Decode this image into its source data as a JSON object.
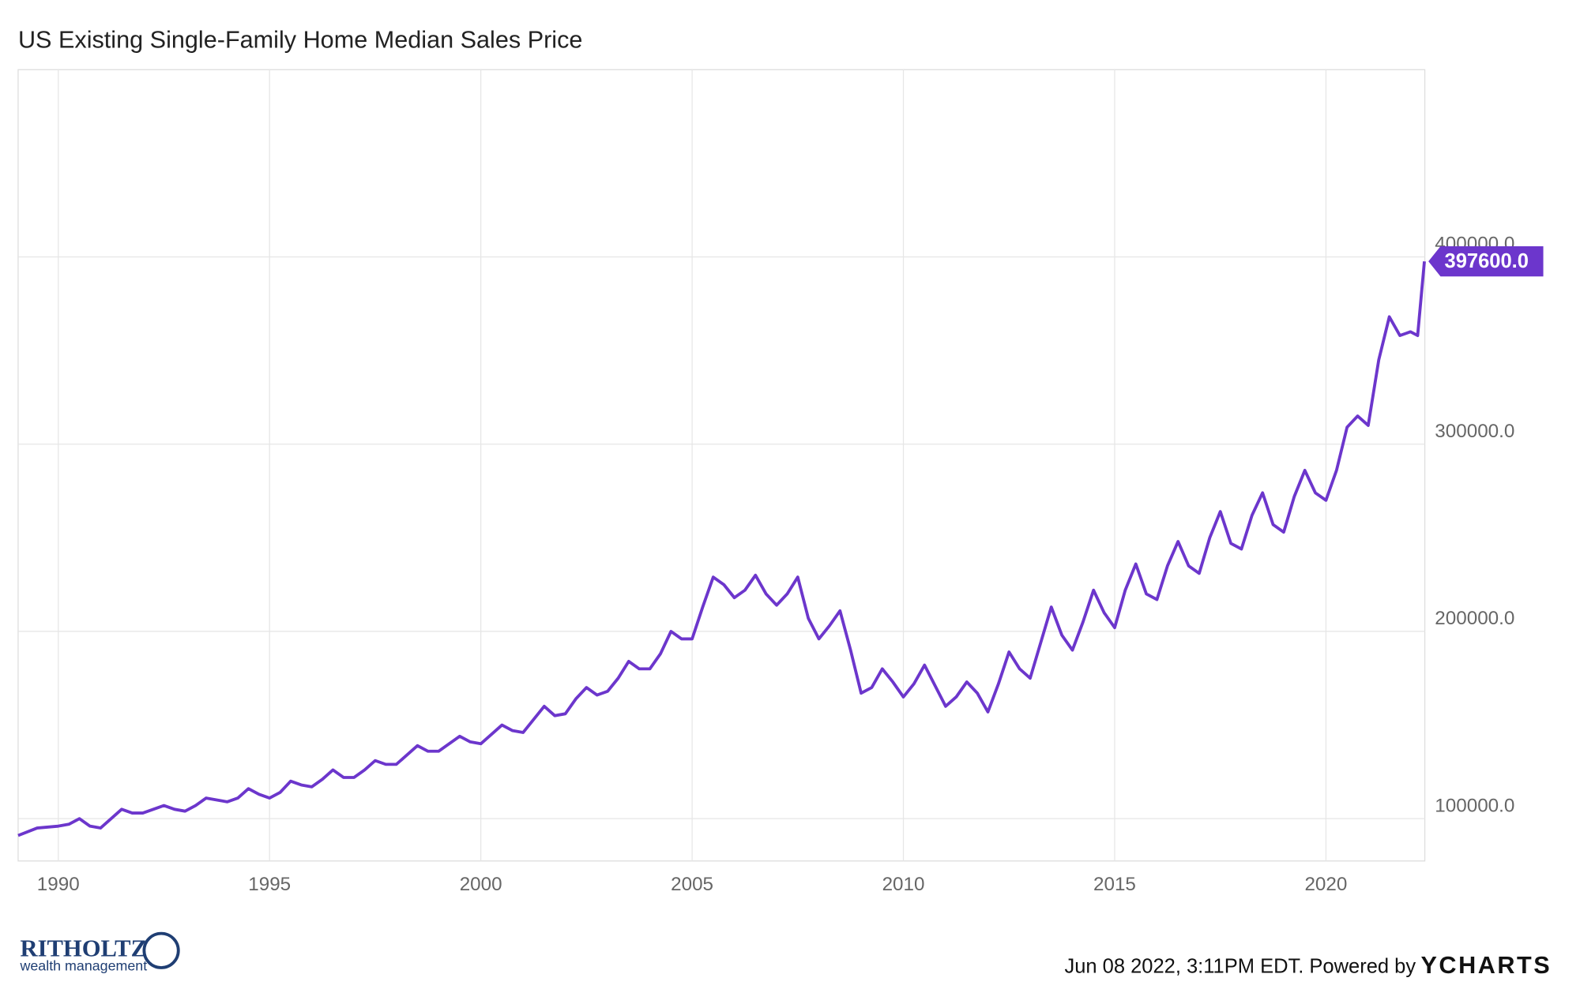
{
  "chart_data": {
    "type": "line",
    "title": "US Existing Single-Family Home Median Sales Price",
    "x": [
      1989.05,
      1989.5,
      1990.0,
      1990.25,
      1990.5,
      1990.75,
      1991.0,
      1991.25,
      1991.5,
      1991.75,
      1992.0,
      1992.25,
      1992.5,
      1992.75,
      1993.0,
      1993.25,
      1993.5,
      1993.75,
      1994.0,
      1994.25,
      1994.5,
      1994.75,
      1995.0,
      1995.25,
      1995.5,
      1995.75,
      1996.0,
      1996.25,
      1996.5,
      1996.75,
      1997.0,
      1997.25,
      1997.5,
      1997.75,
      1998.0,
      1998.25,
      1998.5,
      1998.75,
      1999.0,
      1999.25,
      1999.5,
      1999.75,
      2000.0,
      2000.25,
      2000.5,
      2000.75,
      2001.0,
      2001.25,
      2001.5,
      2001.75,
      2002.0,
      2002.25,
      2002.5,
      2002.75,
      2003.0,
      2003.25,
      2003.5,
      2003.75,
      2004.0,
      2004.25,
      2004.5,
      2004.75,
      2005.0,
      2005.25,
      2005.5,
      2005.75,
      2006.0,
      2006.25,
      2006.5,
      2006.75,
      2007.0,
      2007.25,
      2007.5,
      2007.75,
      2008.0,
      2008.25,
      2008.5,
      2008.75,
      2009.0,
      2009.25,
      2009.5,
      2009.75,
      2010.0,
      2010.25,
      2010.5,
      2010.75,
      2011.0,
      2011.25,
      2011.5,
      2011.75,
      2012.0,
      2012.25,
      2012.5,
      2012.75,
      2013.0,
      2013.25,
      2013.5,
      2013.75,
      2014.0,
      2014.25,
      2014.5,
      2014.75,
      2015.0,
      2015.25,
      2015.5,
      2015.75,
      2016.0,
      2016.25,
      2016.5,
      2016.75,
      2017.0,
      2017.25,
      2017.5,
      2017.75,
      2018.0,
      2018.25,
      2018.5,
      2018.75,
      2019.0,
      2019.25,
      2019.5,
      2019.75,
      2020.0,
      2020.25,
      2020.5,
      2020.75,
      2021.0,
      2021.25,
      2021.5,
      2021.75,
      2022.0,
      2022.17,
      2022.33
    ],
    "series": [
      {
        "name": "US Existing Single-Family Home Median Sales Price",
        "color": "#6c36cc",
        "values": [
          91000,
          95000,
          96000,
          97000,
          100000,
          96000,
          95000,
          100000,
          105000,
          103000,
          103000,
          105000,
          107000,
          105000,
          104000,
          107000,
          111000,
          110000,
          109000,
          111000,
          116000,
          113000,
          111000,
          114000,
          120000,
          118000,
          117000,
          121000,
          126000,
          122000,
          122000,
          126000,
          131000,
          129000,
          129000,
          134000,
          139000,
          136000,
          136000,
          140000,
          144000,
          141000,
          140000,
          145000,
          150000,
          147000,
          146000,
          153000,
          160000,
          155000,
          156000,
          164000,
          170000,
          166000,
          168000,
          175000,
          184000,
          180000,
          180000,
          188000,
          200000,
          196000,
          196000,
          213000,
          229000,
          225000,
          218000,
          222000,
          230000,
          220000,
          214000,
          220000,
          229000,
          207000,
          196000,
          203000,
          211000,
          190000,
          167000,
          170000,
          180000,
          173000,
          165000,
          172000,
          182000,
          171000,
          160000,
          165000,
          173000,
          167000,
          157000,
          172000,
          189000,
          180000,
          175000,
          194000,
          213000,
          198000,
          190000,
          205000,
          222000,
          210000,
          202000,
          222000,
          236000,
          220000,
          217000,
          235000,
          248000,
          235000,
          231000,
          250000,
          264000,
          247000,
          244000,
          262000,
          274000,
          257000,
          253000,
          272000,
          286000,
          274000,
          270000,
          286000,
          309000,
          315000,
          310000,
          345000,
          368000,
          358000,
          360000,
          358000,
          397600
        ],
        "value_labels": [
          null,
          null,
          null,
          null,
          null,
          null,
          null,
          null,
          null,
          null,
          null,
          null,
          null,
          null,
          null,
          null,
          null,
          null,
          null,
          null,
          null,
          null,
          null,
          null,
          null,
          null,
          null,
          null,
          null,
          null,
          null,
          null,
          null,
          null,
          null,
          null,
          null,
          null,
          null,
          null,
          null,
          null,
          null,
          null,
          null,
          null,
          null,
          null,
          null,
          null,
          null,
          null,
          null,
          null,
          null,
          null,
          null,
          null,
          null,
          null,
          null,
          null,
          null,
          null,
          null,
          null,
          null,
          null,
          null,
          null,
          null,
          null,
          null,
          null,
          null,
          null,
          null,
          null,
          null,
          null,
          null,
          null,
          null,
          null,
          null,
          null,
          null,
          null,
          null,
          null,
          null,
          null,
          null,
          null,
          null,
          null,
          null,
          null,
          null,
          null,
          null,
          null,
          null,
          null,
          null,
          null,
          null,
          null,
          null,
          null,
          null,
          null,
          null,
          null,
          null,
          null,
          null,
          null,
          null,
          null,
          null,
          null,
          null,
          null,
          null,
          null,
          null,
          null,
          null,
          null,
          null,
          null,
          "397600.0"
        ]
      }
    ],
    "xlim": [
      1989.05,
      2022.34
    ],
    "xticks": [
      1990,
      1995,
      2000,
      2005,
      2010,
      2015,
      2020
    ],
    "ylim": [
      77400,
      500000
    ],
    "yticks": [
      {
        "value": 100000,
        "label": "100000.0"
      },
      {
        "value": 200000,
        "label": "200000.0"
      },
      {
        "value": 300000,
        "label": "300000.0"
      },
      {
        "value": 400000,
        "label": "400000.0"
      }
    ],
    "grid": true,
    "logo": "RITHOLTZ",
    "logo_subtitle": "wealth management",
    "footer": "Jun 08 2022, 3:11PM EDT. Powered by",
    "brand": "YCHARTS"
  }
}
